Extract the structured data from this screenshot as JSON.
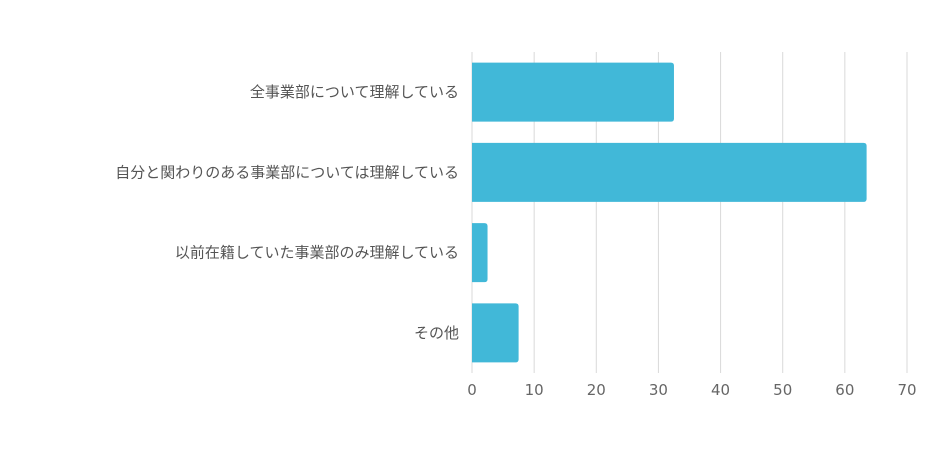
{
  "chart_data": {
    "type": "bar",
    "orientation": "horizontal",
    "categories": [
      "全事業部について理解している",
      "自分と関わりのある事業部については理解している",
      "以前在籍していた事業部のみ理解している",
      "その他"
    ],
    "values": [
      32.5,
      63.5,
      2.5,
      7.5
    ],
    "xlim": [
      0,
      70
    ],
    "xticks": [
      "0",
      "10",
      "20",
      "30",
      "40",
      "50",
      "60",
      "70"
    ],
    "grid": true,
    "legend": "none",
    "bar_color": "#41b8d8",
    "title": "",
    "xlabel": "",
    "ylabel": ""
  }
}
